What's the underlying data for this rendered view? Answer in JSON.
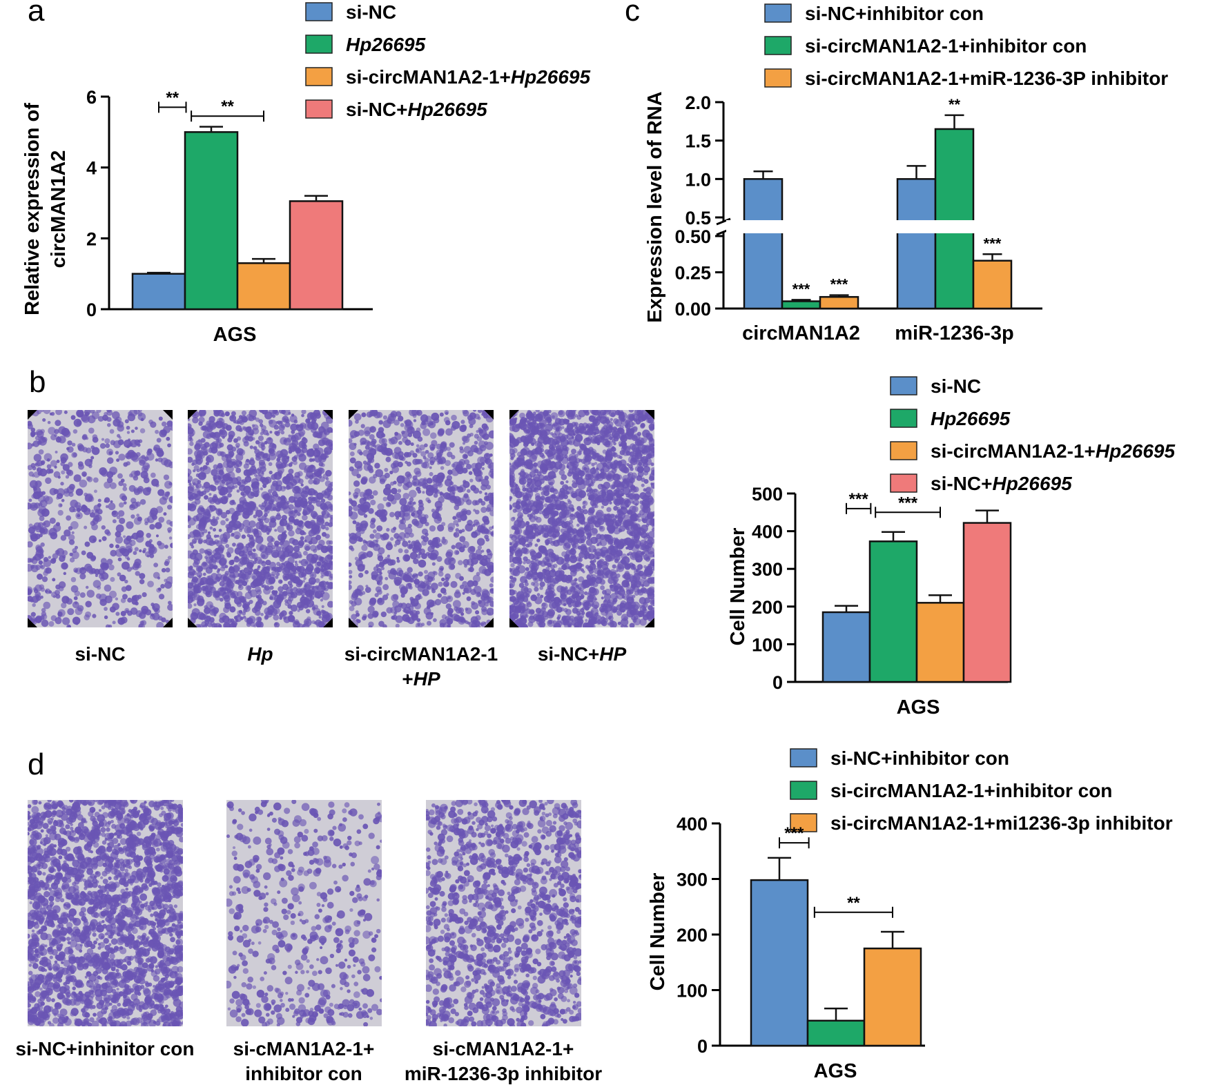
{
  "colors": {
    "blue": "#5b8fc9",
    "green": "#1ea868",
    "orange": "#f3a043",
    "pink": "#ef7a7a",
    "micro_purple": "#6a55b4",
    "micro_bg": "#cfcdd6"
  },
  "panels": {
    "a": {
      "letter": "a"
    },
    "b": {
      "letter": "b"
    },
    "c": {
      "letter": "c"
    },
    "d": {
      "letter": "d"
    }
  },
  "images_b": [
    {
      "caption_parts": [
        {
          "text": "si-NC",
          "italic": false
        }
      ],
      "caption_line2": []
    },
    {
      "caption_parts": [
        {
          "text": "Hp",
          "italic": true
        }
      ],
      "caption_line2": []
    },
    {
      "caption_parts": [
        {
          "text": "si-circMAN1A2-1",
          "italic": false
        }
      ],
      "caption_line2": [
        {
          "text": "+",
          "italic": false
        },
        {
          "text": "HP",
          "italic": true
        }
      ]
    },
    {
      "caption_parts": [
        {
          "text": "si-NC+",
          "italic": false
        },
        {
          "text": "HP",
          "italic": true
        }
      ],
      "caption_line2": []
    }
  ],
  "images_d": [
    {
      "caption_line1": "si-NC+inhinitor con",
      "caption_line2": ""
    },
    {
      "caption_line1": "si-cMAN1A2-1+",
      "caption_line2": "inhibitor con"
    },
    {
      "caption_line1": "si-cMAN1A2-1+",
      "caption_line2": "miR-1236-3p inhibitor"
    }
  ],
  "chart_data": [
    {
      "panel": "a",
      "type": "bar",
      "categories": [
        "AGS"
      ],
      "xlabel": "AGS",
      "ylabel": "Relative expression of circMAN1A2",
      "ylabel_lines": [
        "Relative expression of",
        "circMAN1A2"
      ],
      "ylim": [
        0,
        6
      ],
      "yticks": [
        "0",
        "2",
        "4",
        "6"
      ],
      "legend": [
        {
          "parts": [
            {
              "text": "si-NC",
              "italic": false
            }
          ],
          "color": "blue"
        },
        {
          "parts": [
            {
              "text": "Hp26695",
              "italic": true
            }
          ],
          "color": "green"
        },
        {
          "parts": [
            {
              "text": "si-circMAN1A2-1+",
              "italic": false
            },
            {
              "text": "Hp26695",
              "italic": true
            }
          ],
          "color": "orange"
        },
        {
          "parts": [
            {
              "text": "si-NC+",
              "italic": false
            },
            {
              "text": "Hp26695",
              "italic": true
            }
          ],
          "color": "pink"
        }
      ],
      "series": [
        {
          "name": "si-NC",
          "values": [
            1.0
          ],
          "error": [
            0.03
          ],
          "color": "blue"
        },
        {
          "name": "Hp26695",
          "values": [
            5.0
          ],
          "error": [
            0.15
          ],
          "color": "green"
        },
        {
          "name": "si-circMAN1A2-1+Hp26695",
          "values": [
            1.3
          ],
          "error": [
            0.12
          ],
          "color": "orange"
        },
        {
          "name": "si-NC+Hp26695",
          "values": [
            3.05
          ],
          "error": [
            0.15
          ],
          "color": "pink"
        }
      ],
      "significance": [
        {
          "from": 0,
          "to": 1,
          "label": "**",
          "y": 5.7
        },
        {
          "from": 1,
          "to": 2,
          "label": "**",
          "y": 5.45
        }
      ]
    },
    {
      "panel": "c",
      "type": "bar",
      "categories": [
        "circMAN1A2",
        "miR-1236-3p"
      ],
      "xlabel": "",
      "ylabel": "Expression level of RNA",
      "broken_axis": true,
      "ylim_lower": [
        0,
        0.5
      ],
      "ylim_upper": [
        0.5,
        2.0
      ],
      "yticks_lower": [
        "0.00",
        "0.25",
        "0.50"
      ],
      "yticks_upper": [
        "0.5",
        "1.0",
        "1.5",
        "2.0"
      ],
      "legend": [
        {
          "parts": [
            {
              "text": "si-NC+inhibitor con",
              "italic": false
            }
          ],
          "color": "blue"
        },
        {
          "parts": [
            {
              "text": "si-circMAN1A2-1+inhibitor con",
              "italic": false
            }
          ],
          "color": "green"
        },
        {
          "parts": [
            {
              "text": "si-circMAN1A2-1+miR-1236-3P inhibitor",
              "italic": false
            }
          ],
          "color": "orange"
        }
      ],
      "series": [
        {
          "name": "si-NC+inhibitor con",
          "values": [
            1.0,
            1.0
          ],
          "error": [
            0.1,
            0.17
          ],
          "color": "blue",
          "labels": [
            "",
            ""
          ]
        },
        {
          "name": "si-circMAN1A2-1+inhibitor con",
          "values": [
            0.05,
            1.65
          ],
          "error": [
            0.01,
            0.18
          ],
          "color": "green",
          "labels": [
            "***",
            "**"
          ]
        },
        {
          "name": "si-circMAN1A2-1+miR-1236-3P inhibitor",
          "values": [
            0.08,
            0.33
          ],
          "error": [
            0.012,
            0.045
          ],
          "color": "orange",
          "labels": [
            "***",
            "***"
          ]
        }
      ]
    },
    {
      "panel": "b",
      "type": "bar",
      "categories": [
        "AGS"
      ],
      "xlabel": "AGS",
      "ylabel": "Cell Number",
      "ylim": [
        0,
        500
      ],
      "yticks": [
        "0",
        "100",
        "200",
        "300",
        "400",
        "500"
      ],
      "legend": [
        {
          "parts": [
            {
              "text": "si-NC",
              "italic": false
            }
          ],
          "color": "blue"
        },
        {
          "parts": [
            {
              "text": "Hp26695",
              "italic": true
            }
          ],
          "color": "green"
        },
        {
          "parts": [
            {
              "text": "si-circMAN1A2-1+",
              "italic": false
            },
            {
              "text": "Hp26695",
              "italic": true
            }
          ],
          "color": "orange"
        },
        {
          "parts": [
            {
              "text": "si-NC+",
              "italic": false
            },
            {
              "text": "Hp26695",
              "italic": true
            }
          ],
          "color": "pink"
        }
      ],
      "series": [
        {
          "name": "si-NC",
          "values": [
            185
          ],
          "error": [
            17
          ],
          "color": "blue"
        },
        {
          "name": "Hp26695",
          "values": [
            373
          ],
          "error": [
            25
          ],
          "color": "green"
        },
        {
          "name": "si-circMAN1A2-1+Hp26695",
          "values": [
            210
          ],
          "error": [
            20
          ],
          "color": "orange"
        },
        {
          "name": "si-NC+Hp26695",
          "values": [
            422
          ],
          "error": [
            33
          ],
          "color": "pink"
        }
      ],
      "significance": [
        {
          "from": 0,
          "to": 1,
          "label": "***",
          "y": 460
        },
        {
          "from": 1,
          "to": 2,
          "label": "***",
          "y": 450
        }
      ]
    },
    {
      "panel": "d",
      "type": "bar",
      "categories": [
        "AGS"
      ],
      "xlabel": "AGS",
      "ylabel": "Cell Number",
      "ylim": [
        0,
        400
      ],
      "yticks": [
        "0",
        "100",
        "200",
        "300",
        "400"
      ],
      "legend": [
        {
          "parts": [
            {
              "text": "si-NC+inhibitor con",
              "italic": false
            }
          ],
          "color": "blue"
        },
        {
          "parts": [
            {
              "text": "si-circMAN1A2-1+inhibitor con",
              "italic": false
            }
          ],
          "color": "green"
        },
        {
          "parts": [
            {
              "text": "si-circMAN1A2-1+mi1236-3p inhibitor",
              "italic": false
            }
          ],
          "color": "orange"
        }
      ],
      "series": [
        {
          "name": "si-NC+inhibitor con",
          "values": [
            298
          ],
          "error": [
            40
          ],
          "color": "blue"
        },
        {
          "name": "si-circMAN1A2-1+inhibitor con",
          "values": [
            45
          ],
          "error": [
            22
          ],
          "color": "green"
        },
        {
          "name": "si-circMAN1A2-1+mi1236-3p inhibitor",
          "values": [
            175
          ],
          "error": [
            30
          ],
          "color": "orange"
        }
      ],
      "significance": [
        {
          "from": 0,
          "to": 1,
          "label": "***",
          "y": 365
        },
        {
          "from": 1,
          "to": 2,
          "label": "**",
          "y": 240
        }
      ]
    }
  ]
}
